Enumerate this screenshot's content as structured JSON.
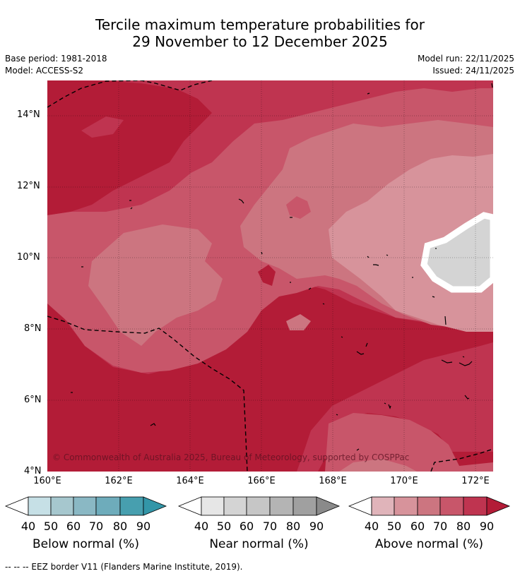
{
  "title": {
    "line1": "Tercile maximum temperature probabilities for",
    "line2": "29 November to 12 December 2025"
  },
  "meta": {
    "base_period": "Base period: 1981-2018",
    "model": "Model: ACCESS-S2",
    "model_run": "Model run: 22/11/2025",
    "issued": "Issued: 24/11/2025"
  },
  "map": {
    "lat_labels": [
      "14°N",
      "12°N",
      "10°N",
      "8°N",
      "6°N",
      "4°N"
    ],
    "lon_labels": [
      "160°E",
      "162°E",
      "164°E",
      "166°E",
      "168°E",
      "170°E",
      "172°E"
    ],
    "copyright": "© Commonwealth of Australia 2025, Bureau of Meteorology, supported by COSPPac",
    "colors": {
      "above_90": "#b31c37",
      "above_80": "#bf3450",
      "above_70": "#c8566a",
      "above_60": "#cc7580",
      "above_50": "#d7939b",
      "near_normal": "#d4d4d4"
    }
  },
  "colorbars": [
    {
      "label": "Below normal (%)",
      "ticks": [
        "40",
        "50",
        "60",
        "70",
        "80",
        "90"
      ],
      "colors": [
        "#ffffff",
        "#c6e0e6",
        "#a6c7ce",
        "#8ab8c4",
        "#6eacbb",
        "#479faf",
        "#3396a8"
      ]
    },
    {
      "label": "Near normal (%)",
      "ticks": [
        "40",
        "50",
        "60",
        "70",
        "80",
        "90"
      ],
      "colors": [
        "#ffffff",
        "#e6e6e6",
        "#d4d4d4",
        "#c6c6c6",
        "#b4b4b4",
        "#a0a0a0",
        "#8a8a8a"
      ]
    },
    {
      "label": "Above normal (%)",
      "ticks": [
        "40",
        "50",
        "60",
        "70",
        "80",
        "90"
      ],
      "colors": [
        "#ffffff",
        "#e0b4ba",
        "#d7939b",
        "#cc7580",
        "#c8566a",
        "#bf3450",
        "#b31c37"
      ]
    }
  ],
  "footnote": "-- -- -- EEZ border V11 (Flanders Marine Institute, 2019)."
}
